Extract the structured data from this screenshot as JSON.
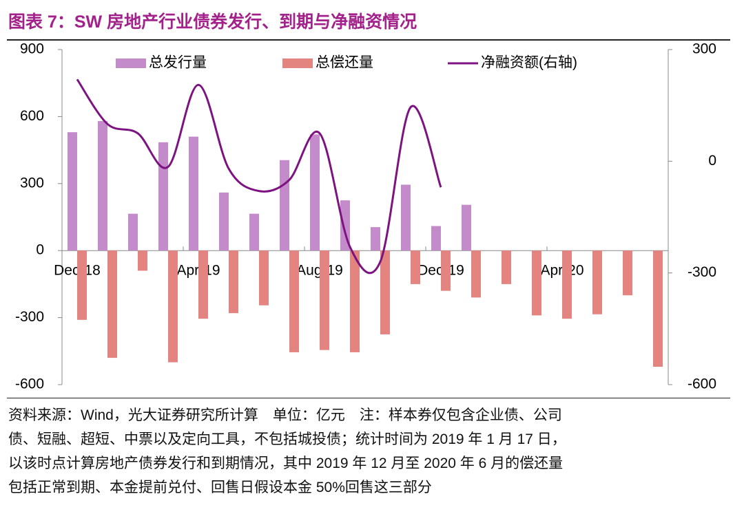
{
  "title": "图表 7：SW 房地产行业债券发行、到期与净融资情况",
  "note": [
    "资料来源：Wind，光大证券研究所计算　单位：亿元　注：样本券仅包含企业债、公司",
    "债、短融、超短、中票以及定向工具，不包括城投债；统计时间为 2019 年 1 月 17 日，",
    "以该时点计算房地产债券发行和到期情况，其中 2019 年 12 月至 2020 年 6 月的偿还量",
    "包括正常到期、本金提前兑付、回售日假设本金 50%回售这三部分"
  ],
  "chart_data": {
    "type": "bar",
    "categories": [
      "Dec-18",
      null,
      null,
      null,
      "Apr-19",
      null,
      null,
      null,
      "Aug-19",
      null,
      null,
      null,
      "Dec-19",
      null,
      null,
      null,
      "Apr-20",
      null,
      null,
      null
    ],
    "series": [
      {
        "name": "总发行量",
        "color": "#c48bcb",
        "type": "bar",
        "values": [
          530,
          580,
          165,
          485,
          510,
          260,
          165,
          405,
          520,
          225,
          105,
          295,
          110,
          205,
          null,
          null,
          null,
          null,
          null,
          null
        ]
      },
      {
        "name": "总偿还量",
        "color": "#e38481",
        "type": "bar",
        "values": [
          -310,
          -480,
          -90,
          -500,
          -305,
          -280,
          -245,
          -455,
          -445,
          -455,
          -375,
          -150,
          -180,
          -210,
          -150,
          -290,
          -305,
          -285,
          -200,
          -520
        ]
      },
      {
        "name": "净融资额(右轴)",
        "color": "#7c1380",
        "type": "line",
        "axis": "y2",
        "values": [
          220,
          100,
          75,
          -15,
          205,
          -20,
          -80,
          -50,
          75,
          -230,
          -270,
          145,
          -70,
          null,
          null,
          null,
          null,
          null,
          null,
          null
        ]
      }
    ],
    "ylim": [
      -600,
      900
    ],
    "yticks": [
      -600,
      -300,
      0,
      300,
      600,
      900
    ],
    "y2lim": [
      -600,
      300
    ],
    "y2ticks": [
      -600,
      -300,
      0,
      300
    ]
  }
}
